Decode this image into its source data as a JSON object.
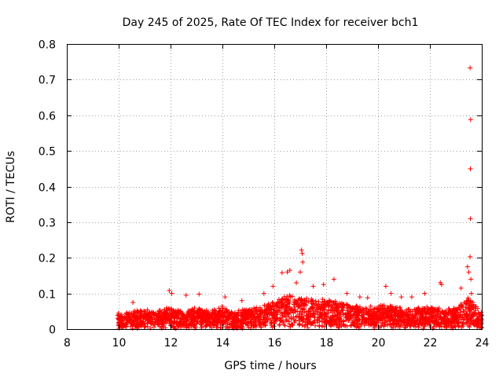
{
  "chart_data": {
    "type": "scatter",
    "title": "Day 245 of 2025, Rate Of TEC Index for receiver bch1",
    "xlabel": "GPS time / hours",
    "ylabel": "ROTI / TECUs",
    "xlim": [
      8,
      24
    ],
    "ylim": [
      0,
      0.8
    ],
    "x_ticks": [
      "8",
      "10",
      "12",
      "14",
      "16",
      "18",
      "20",
      "22",
      "24"
    ],
    "y_ticks": [
      "0",
      "0.1",
      "0.2",
      "0.3",
      "0.4",
      "0.5",
      "0.6",
      "0.7",
      "0.8"
    ],
    "grid": true,
    "marker": "+",
    "series_color": "#ff0000",
    "x_start": 9.95,
    "x_end": 24.0,
    "baseline_profile": [
      {
        "x": 10.0,
        "y": 0.035
      },
      {
        "x": 10.5,
        "y": 0.045
      },
      {
        "x": 11.0,
        "y": 0.05
      },
      {
        "x": 11.5,
        "y": 0.05
      },
      {
        "x": 12.0,
        "y": 0.055
      },
      {
        "x": 12.5,
        "y": 0.045
      },
      {
        "x": 13.0,
        "y": 0.06
      },
      {
        "x": 13.5,
        "y": 0.045
      },
      {
        "x": 14.0,
        "y": 0.06
      },
      {
        "x": 14.5,
        "y": 0.045
      },
      {
        "x": 15.0,
        "y": 0.055
      },
      {
        "x": 15.5,
        "y": 0.06
      },
      {
        "x": 16.0,
        "y": 0.075
      },
      {
        "x": 16.5,
        "y": 0.09
      },
      {
        "x": 17.0,
        "y": 0.085
      },
      {
        "x": 17.5,
        "y": 0.08
      },
      {
        "x": 18.0,
        "y": 0.08
      },
      {
        "x": 18.5,
        "y": 0.075
      },
      {
        "x": 19.0,
        "y": 0.06
      },
      {
        "x": 19.5,
        "y": 0.06
      },
      {
        "x": 20.0,
        "y": 0.06
      },
      {
        "x": 20.5,
        "y": 0.065
      },
      {
        "x": 21.0,
        "y": 0.055
      },
      {
        "x": 21.5,
        "y": 0.055
      },
      {
        "x": 22.0,
        "y": 0.06
      },
      {
        "x": 22.5,
        "y": 0.05
      },
      {
        "x": 23.0,
        "y": 0.055
      },
      {
        "x": 23.5,
        "y": 0.09
      },
      {
        "x": 24.0,
        "y": 0.04
      }
    ],
    "outliers": [
      {
        "x": 10.55,
        "y": 0.075
      },
      {
        "x": 11.95,
        "y": 0.108
      },
      {
        "x": 12.05,
        "y": 0.1
      },
      {
        "x": 12.6,
        "y": 0.095
      },
      {
        "x": 13.1,
        "y": 0.098
      },
      {
        "x": 14.1,
        "y": 0.09
      },
      {
        "x": 14.75,
        "y": 0.08
      },
      {
        "x": 15.6,
        "y": 0.1
      },
      {
        "x": 15.95,
        "y": 0.12
      },
      {
        "x": 16.3,
        "y": 0.158
      },
      {
        "x": 16.5,
        "y": 0.16
      },
      {
        "x": 16.6,
        "y": 0.165
      },
      {
        "x": 16.85,
        "y": 0.13
      },
      {
        "x": 17.05,
        "y": 0.222
      },
      {
        "x": 17.08,
        "y": 0.212
      },
      {
        "x": 17.1,
        "y": 0.188
      },
      {
        "x": 17.0,
        "y": 0.16
      },
      {
        "x": 17.5,
        "y": 0.12
      },
      {
        "x": 17.9,
        "y": 0.125
      },
      {
        "x": 18.3,
        "y": 0.14
      },
      {
        "x": 18.8,
        "y": 0.1
      },
      {
        "x": 19.3,
        "y": 0.09
      },
      {
        "x": 19.6,
        "y": 0.088
      },
      {
        "x": 20.3,
        "y": 0.12
      },
      {
        "x": 20.5,
        "y": 0.1
      },
      {
        "x": 20.9,
        "y": 0.09
      },
      {
        "x": 21.3,
        "y": 0.09
      },
      {
        "x": 21.8,
        "y": 0.1
      },
      {
        "x": 22.4,
        "y": 0.13
      },
      {
        "x": 22.45,
        "y": 0.125
      },
      {
        "x": 23.2,
        "y": 0.115
      },
      {
        "x": 23.45,
        "y": 0.175
      },
      {
        "x": 23.5,
        "y": 0.16
      },
      {
        "x": 23.55,
        "y": 0.203
      },
      {
        "x": 23.58,
        "y": 0.14
      },
      {
        "x": 23.6,
        "y": 0.1
      },
      {
        "x": 23.56,
        "y": 0.31
      },
      {
        "x": 23.56,
        "y": 0.45
      },
      {
        "x": 23.57,
        "y": 0.588
      },
      {
        "x": 23.55,
        "y": 0.733
      }
    ]
  }
}
